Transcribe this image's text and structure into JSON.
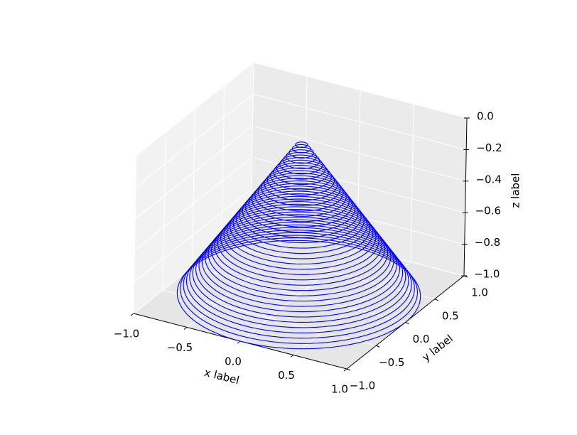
{
  "chart_data": {
    "type": "rings3d",
    "x_label": "x label",
    "y_label": "y label",
    "z_label": "z label",
    "color": "#0000ff",
    "rings": {
      "r": [
        0.05,
        0.075,
        0.1,
        0.125,
        0.15,
        0.175,
        0.2,
        0.225,
        0.25,
        0.275,
        0.3,
        0.325,
        0.35,
        0.375,
        0.4,
        0.425,
        0.45,
        0.475,
        0.5,
        0.525,
        0.55,
        0.575,
        0.6,
        0.625,
        0.65,
        0.675,
        0.7,
        0.725,
        0.75,
        0.775,
        0.8,
        0.825,
        0.85,
        0.875,
        0.9,
        0.925,
        0.95,
        0.975,
        1.0
      ],
      "z": [
        -0.05,
        -0.075,
        -0.1,
        -0.125,
        -0.15,
        -0.175,
        -0.2,
        -0.225,
        -0.25,
        -0.275,
        -0.3,
        -0.325,
        -0.35,
        -0.375,
        -0.4,
        -0.425,
        -0.45,
        -0.475,
        -0.5,
        -0.525,
        -0.55,
        -0.575,
        -0.6,
        -0.625,
        -0.65,
        -0.675,
        -0.7,
        -0.725,
        -0.75,
        -0.775,
        -0.8,
        -0.825,
        -0.85,
        -0.875,
        -0.9,
        -0.925,
        -0.95,
        -0.975,
        -1.0
      ]
    },
    "xlim": [
      -1,
      1
    ],
    "ylim": [
      -1,
      1
    ],
    "zlim": [
      -1,
      0
    ],
    "xticks": [
      {
        "value": -1,
        "label": "−1.0"
      },
      {
        "value": -0.5,
        "label": "−0.5"
      },
      {
        "value": 0,
        "label": "0.0"
      },
      {
        "value": 0.5,
        "label": "0.5"
      },
      {
        "value": 1,
        "label": "1.0"
      }
    ],
    "yticks": [
      {
        "value": -1,
        "label": "−1.0"
      },
      {
        "value": -0.5,
        "label": "−0.5"
      },
      {
        "value": 0,
        "label": "0.0"
      },
      {
        "value": 0.5,
        "label": "0.5"
      },
      {
        "value": 1,
        "label": "1.0"
      }
    ],
    "zticks": [
      {
        "value": -1,
        "label": "−1.0"
      },
      {
        "value": -0.8,
        "label": "−0.8"
      },
      {
        "value": -0.6,
        "label": "−0.6"
      },
      {
        "value": -0.4,
        "label": "−0.4"
      },
      {
        "value": -0.2,
        "label": "−0.2"
      },
      {
        "value": 0,
        "label": "0.0"
      }
    ],
    "grid": true
  }
}
